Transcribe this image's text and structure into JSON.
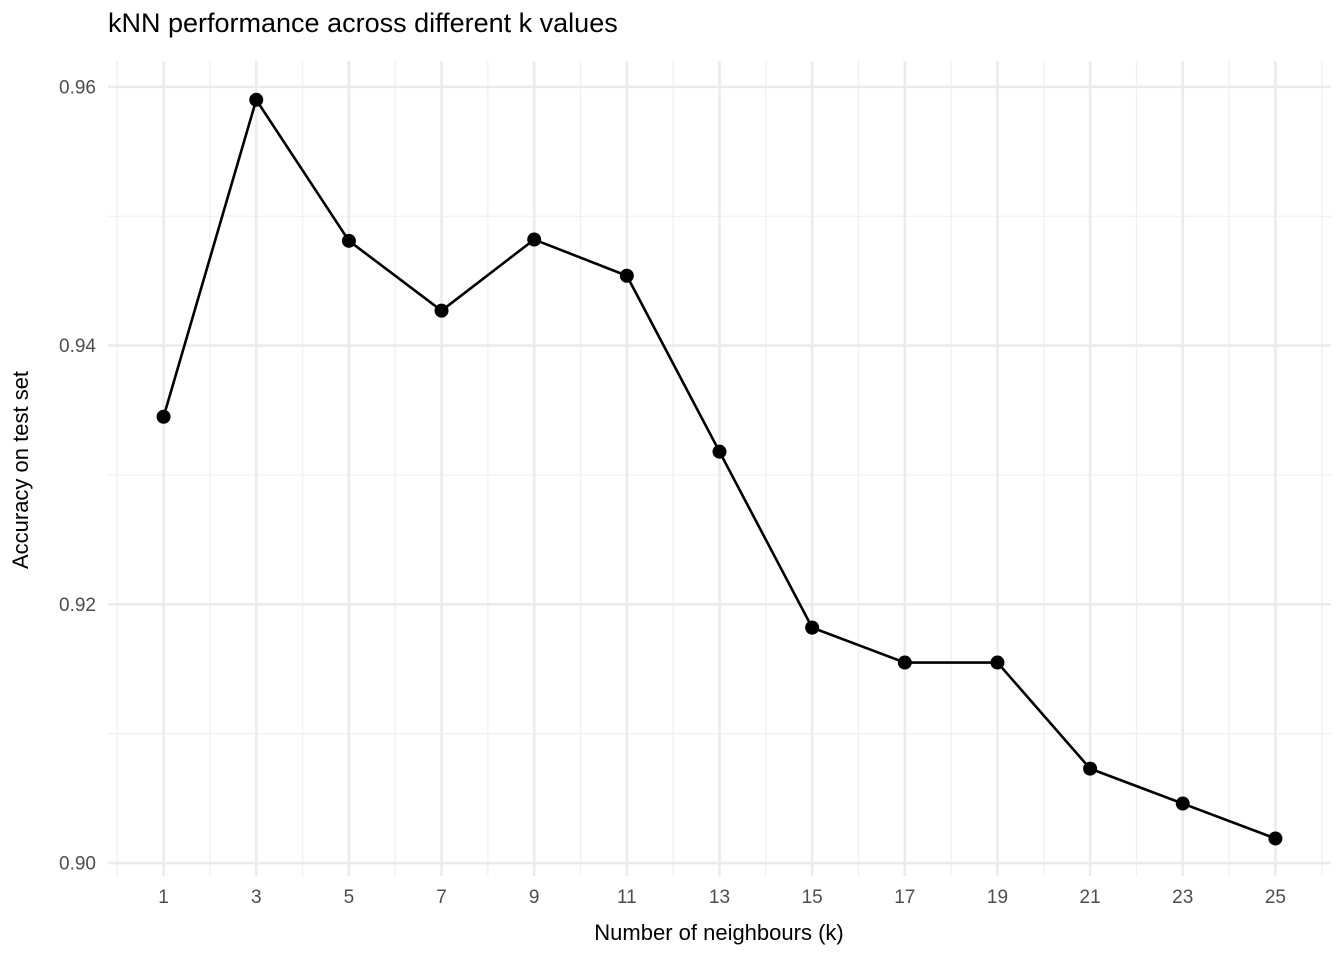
{
  "chart_data": {
    "type": "line",
    "title": "kNN performance across different k values",
    "xlabel": "Number of neighbours (k)",
    "ylabel": "Accuracy on test set",
    "x": [
      1,
      3,
      5,
      7,
      9,
      11,
      13,
      15,
      17,
      19,
      21,
      23,
      25
    ],
    "y": [
      0.9345,
      0.959,
      0.9481,
      0.9427,
      0.9482,
      0.9454,
      0.9318,
      0.9182,
      0.9155,
      0.9155,
      0.9073,
      0.9046,
      0.9019
    ],
    "x_tick_values": [
      1,
      3,
      5,
      7,
      9,
      11,
      13,
      15,
      17,
      19,
      21,
      23,
      25
    ],
    "x_tick_labels": [
      "1",
      "3",
      "5",
      "7",
      "9",
      "11",
      "13",
      "15",
      "17",
      "19",
      "21",
      "23",
      "25"
    ],
    "x_minor_values": [
      0,
      2,
      4,
      6,
      8,
      10,
      12,
      14,
      16,
      18,
      20,
      22,
      24,
      26
    ],
    "y_tick_values": [
      0.96,
      0.94,
      0.92,
      0.9
    ],
    "y_tick_labels": [
      "0.96",
      "0.94",
      "0.92",
      "0.90"
    ],
    "y_minor_values": [
      0.95,
      0.93,
      0.91
    ],
    "xlim": [
      -0.2,
      26.2
    ],
    "ylim": [
      0.899,
      0.962
    ],
    "grid": true,
    "legend": "none",
    "marker_radius": 7,
    "line_width": 2.6,
    "colors": {
      "line": "#000000",
      "marker": "#000000",
      "grid_major": "#EBEBEB",
      "grid_minor": "#F0F0F0",
      "tick_label": "#4D4D4D",
      "title": "#000000",
      "background": "#FFFFFF"
    }
  }
}
